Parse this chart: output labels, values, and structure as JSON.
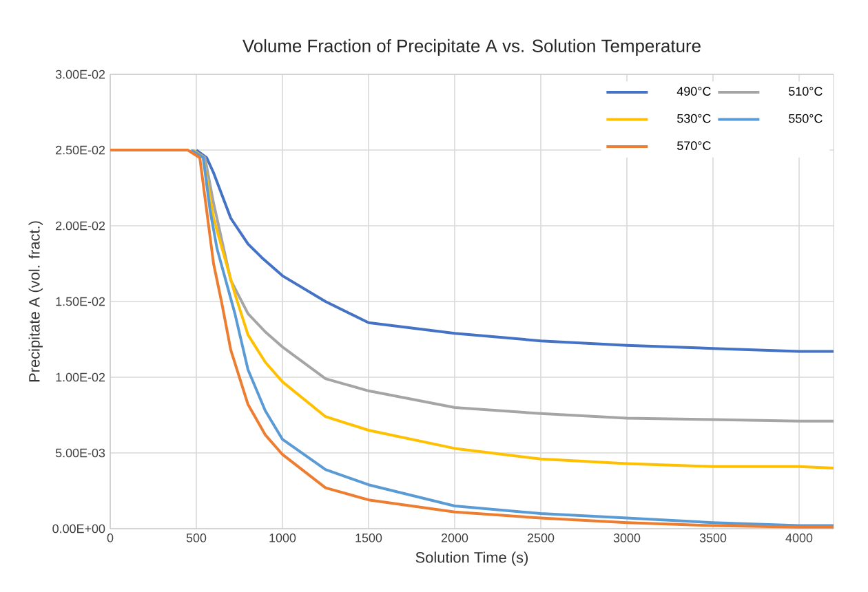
{
  "chart_data": {
    "type": "line",
    "title": "Volume Fraction of Precipitate A vs. Solution Temperature",
    "xlabel": "Solution Time (s)",
    "ylabel": "Precipitate A (vol. fract.)",
    "xlim": [
      0,
      4200
    ],
    "xticks": [
      0,
      500,
      1000,
      1500,
      2000,
      2500,
      3000,
      3500,
      4000
    ],
    "ylim": [
      0,
      0.03
    ],
    "yticks": [
      {
        "value": 0,
        "label": "0.00E+00"
      },
      {
        "value": 0.005,
        "label": "5.00E-03"
      },
      {
        "value": 0.01,
        "label": "1.00E-02"
      },
      {
        "value": 0.015,
        "label": "1.50E-02"
      },
      {
        "value": 0.02,
        "label": "2.00E-02"
      },
      {
        "value": 0.025,
        "label": "2.50E-02"
      },
      {
        "value": 0.03,
        "label": "3.00E-02"
      }
    ],
    "grid": true,
    "legend": "top right",
    "marker": "none",
    "line_style": "solid",
    "series": [
      {
        "name": "490°C",
        "color": "#4472c4",
        "x": [
          500,
          560,
          600,
          700,
          800,
          880,
          1000,
          1250,
          1500,
          2000,
          2500,
          3000,
          3500,
          4000,
          4200
        ],
        "values": [
          0.025,
          0.0245,
          0.0235,
          0.0205,
          0.0188,
          0.0179,
          0.0167,
          0.015,
          0.0136,
          0.0129,
          0.0124,
          0.0121,
          0.0119,
          0.0117,
          0.0117
        ]
      },
      {
        "name": "510°C",
        "color": "#a5a5a5",
        "x": [
          480,
          550,
          600,
          700,
          800,
          900,
          1000,
          1250,
          1500,
          2000,
          2500,
          3000,
          3500,
          4000,
          4200
        ],
        "values": [
          0.025,
          0.0245,
          0.0215,
          0.0164,
          0.0142,
          0.013,
          0.012,
          0.0099,
          0.0091,
          0.008,
          0.0076,
          0.0073,
          0.0072,
          0.0071,
          0.0071
        ]
      },
      {
        "name": "530°C",
        "color": "#ffc000",
        "x": [
          480,
          540,
          600,
          724,
          800,
          900,
          1000,
          1250,
          1500,
          2000,
          2500,
          3000,
          3500,
          4000,
          4200
        ],
        "values": [
          0.025,
          0.0245,
          0.0205,
          0.0155,
          0.0128,
          0.011,
          0.0097,
          0.0074,
          0.0065,
          0.0053,
          0.0046,
          0.0043,
          0.0041,
          0.0041,
          0.004
        ]
      },
      {
        "name": "550°C",
        "color": "#5b9bd5",
        "x": [
          470,
          540,
          580,
          620,
          724,
          800,
          900,
          1000,
          1250,
          1500,
          2000,
          2500,
          3000,
          3500,
          4000,
          4200
        ],
        "values": [
          0.025,
          0.0245,
          0.021,
          0.0185,
          0.0142,
          0.0105,
          0.0078,
          0.0059,
          0.0039,
          0.0029,
          0.0015,
          0.001,
          0.0007,
          0.0004,
          0.0002,
          0.0002
        ]
      },
      {
        "name": "570°C",
        "color": "#ed7d31",
        "x": [
          0,
          450,
          520,
          560,
          600,
          646,
          700,
          800,
          900,
          1000,
          1250,
          1500,
          2000,
          2500,
          3000,
          3500,
          4000,
          4200
        ],
        "values": [
          0.025,
          0.025,
          0.0245,
          0.021,
          0.0175,
          0.015,
          0.0118,
          0.0082,
          0.0062,
          0.0049,
          0.0027,
          0.0019,
          0.0011,
          0.0007,
          0.0004,
          0.0002,
          0.0001,
          0.0001
        ]
      }
    ]
  }
}
